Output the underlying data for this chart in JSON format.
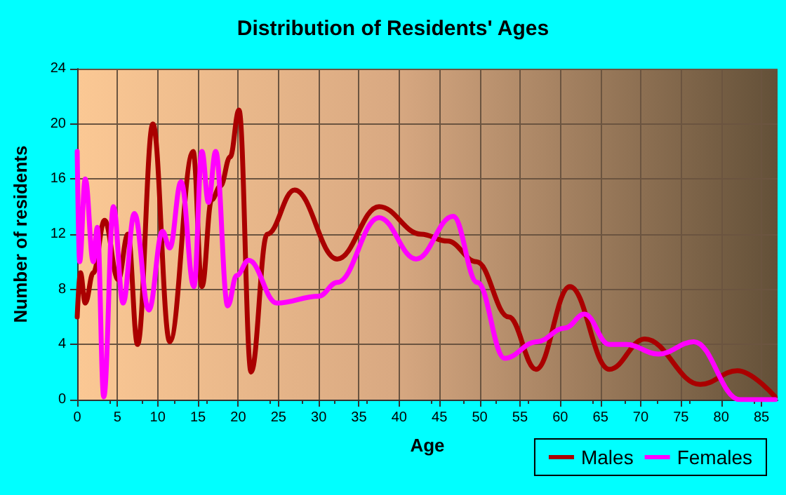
{
  "chart_data": {
    "type": "line",
    "title": "Distribution of Residents' Ages",
    "xlabel": "Age",
    "ylabel": "Number of residents",
    "xlim": [
      0,
      87
    ],
    "xticks": [
      0,
      5,
      10,
      15,
      20,
      25,
      30,
      35,
      40,
      45,
      50,
      55,
      60,
      65,
      70,
      75,
      80,
      85
    ],
    "ylim": [
      0,
      24
    ],
    "yticks": [
      0,
      4,
      8,
      12,
      16,
      20,
      24
    ],
    "grid": true,
    "legend": "bottom right",
    "marker": "none",
    "line_style": "solid",
    "series": [
      {
        "name": "Males",
        "color": "#aa0000",
        "x": [
          0,
          0.4,
          1,
          2,
          3.4,
          5.1,
          6.3,
          7.5,
          9.4,
          11.5,
          14.4,
          15.5,
          16.7,
          17.8,
          19,
          20.1,
          21.6,
          23.6,
          27,
          32.3,
          37.5,
          42.7,
          46,
          49.6,
          53.6,
          57,
          61.2,
          66.1,
          70.5,
          77.4,
          82,
          86.7
        ],
        "values": [
          6,
          9.2,
          7,
          9.2,
          13,
          8.7,
          12,
          4,
          20,
          4.2,
          18,
          8.2,
          14.5,
          15.5,
          17.6,
          21,
          2,
          12,
          15.2,
          10.2,
          14,
          12,
          11.5,
          10,
          6,
          2.2,
          8.2,
          2.2,
          4.4,
          1.1,
          2.1,
          0.2
        ]
      },
      {
        "name": "Females",
        "color": "#ff00ff",
        "x": [
          0,
          0.3,
          1,
          2,
          2.5,
          3.3,
          4.5,
          5.7,
          7.1,
          8.9,
          10.6,
          11.5,
          12.9,
          14.5,
          15.5,
          16.3,
          17.2,
          18.7,
          19.8,
          21.3,
          24.8,
          30,
          32.3,
          37.5,
          42.1,
          46.7,
          49.7,
          53.1,
          57.1,
          60.6,
          63,
          66.1,
          68.2,
          72.2,
          76.6,
          82.3,
          86.7
        ],
        "values": [
          18,
          10,
          16,
          10,
          12.5,
          0.2,
          14,
          7,
          13.5,
          6.5,
          12.2,
          11,
          15.8,
          8.2,
          18,
          14.3,
          18,
          6.8,
          9,
          10.1,
          7,
          7.5,
          8.5,
          13.2,
          10.2,
          13.3,
          8.5,
          3,
          4.2,
          5.2,
          6.2,
          4,
          4,
          3.3,
          4.2,
          0,
          0
        ]
      }
    ]
  }
}
